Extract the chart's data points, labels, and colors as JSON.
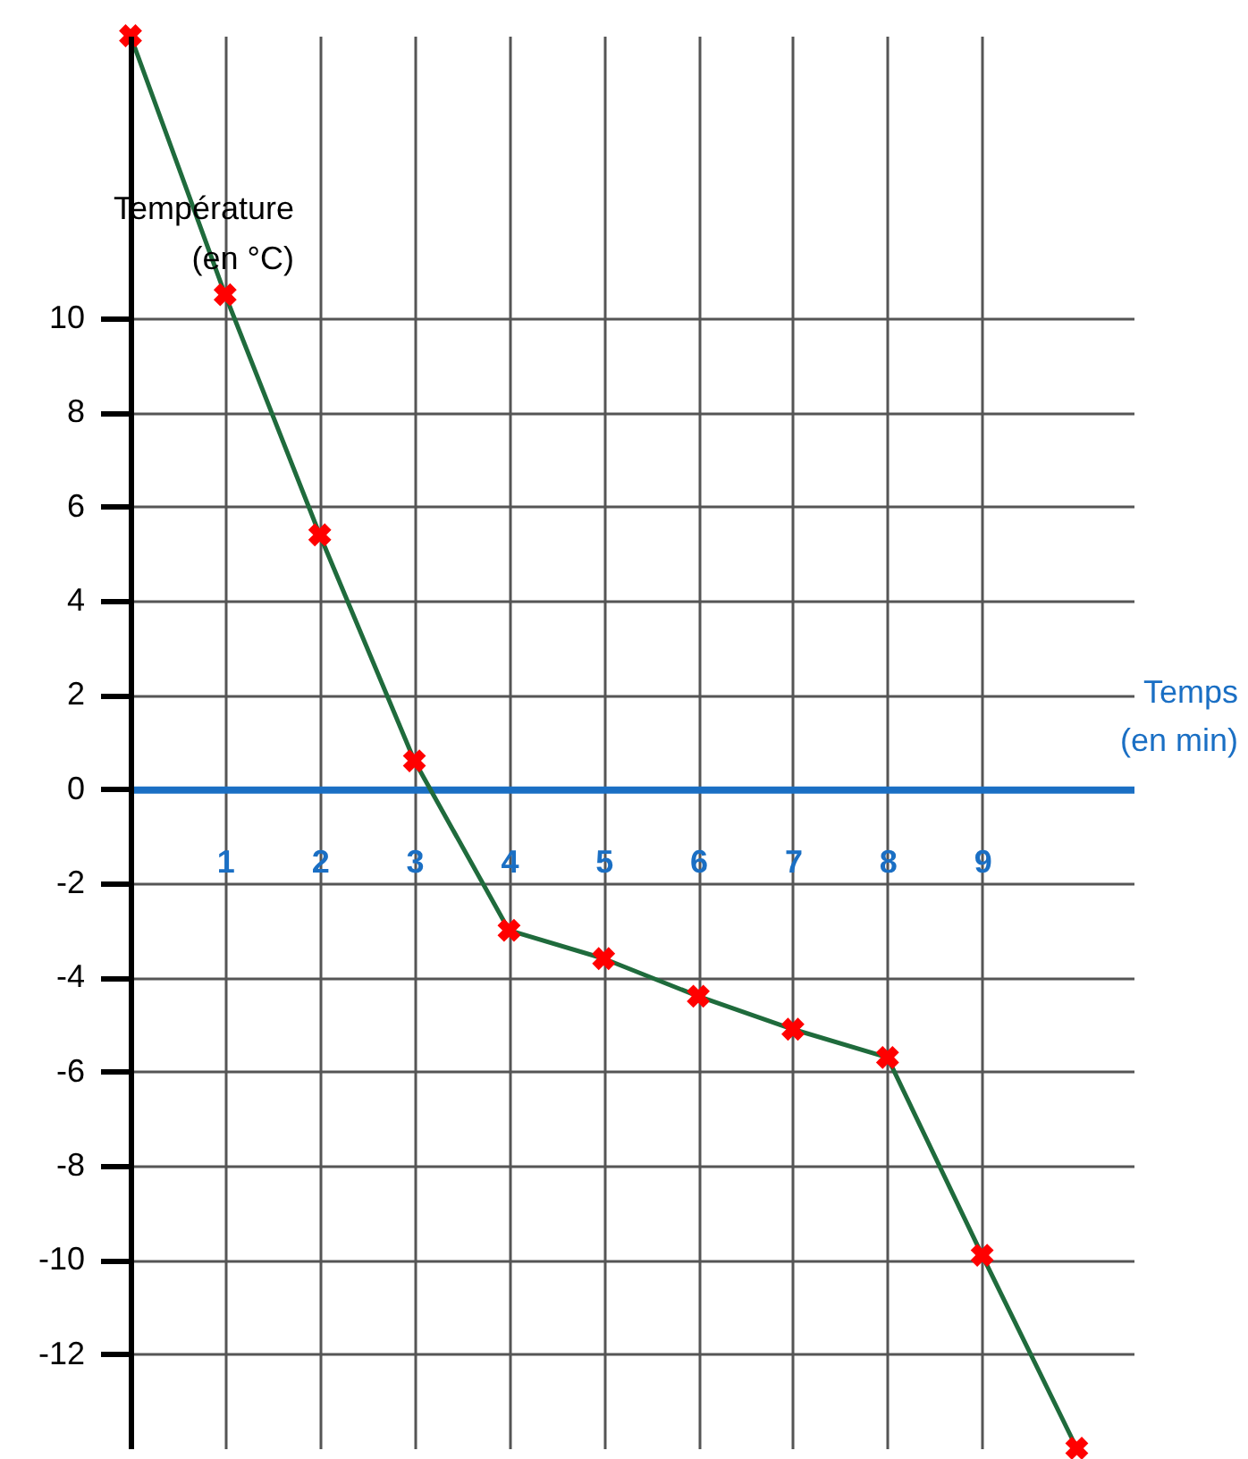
{
  "chart_data": {
    "type": "line",
    "xlabel": "Temps\n(en min)",
    "ylabel": "Température\n(en °C)",
    "x": [
      0,
      1,
      2,
      3,
      4,
      5,
      6,
      7,
      8,
      9,
      10
    ],
    "series": [
      {
        "color": "#1f6b3c",
        "colors": [
          "#ff0000",
          "#ff0000",
          "#ff0000",
          "#ff0000",
          "#ff0000",
          "#ff0000",
          "#ff0000",
          "#ff0000",
          "#ff0000",
          "#ff0000",
          "#ff0000"
        ],
        "values": [
          16,
          10.5,
          5.4,
          0.6,
          -3,
          -3.6,
          -4.4,
          -5.1,
          -5.7,
          -9.9,
          -14
        ]
      }
    ],
    "xlim": [
      0,
      10.6
    ],
    "ylim": [
      -14,
      16
    ],
    "xticks": [
      1,
      2,
      3,
      4,
      5,
      6,
      7,
      8,
      9
    ],
    "yticks": [
      -12,
      -10,
      -8,
      -6,
      -4,
      -2,
      0,
      2,
      4,
      6,
      8,
      10
    ],
    "grid": true,
    "marker": "cross",
    "line_style": "solid"
  }
}
